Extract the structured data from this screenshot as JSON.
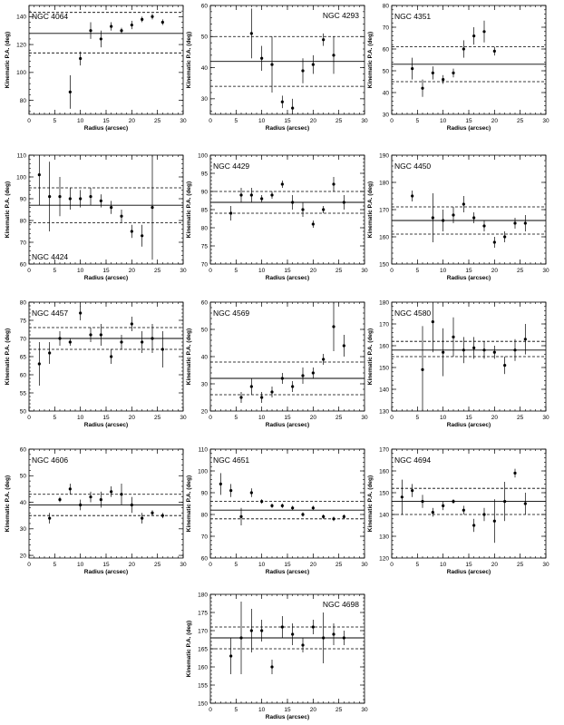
{
  "chart_data": [
    {
      "type": "scatter",
      "galaxy": "NGC 4064",
      "title_pos": "top-left",
      "title": "NGC 4064",
      "xlabel": "Radius (arcsec)",
      "ylabel": "Kinematic P.A. (deg)",
      "xlim": [
        0,
        30
      ],
      "ylim": [
        70,
        148
      ],
      "xticks": [
        0,
        5,
        10,
        15,
        20,
        25,
        30
      ],
      "yticks": [
        80,
        100,
        120,
        140
      ],
      "hline": 128,
      "band": [
        114,
        143
      ],
      "points": [
        {
          "x": 8,
          "y": 86,
          "err": 12
        },
        {
          "x": 10,
          "y": 110,
          "err": 5
        },
        {
          "x": 12,
          "y": 130,
          "err": 6
        },
        {
          "x": 14,
          "y": 124,
          "err": 6
        },
        {
          "x": 16,
          "y": 133,
          "err": 3
        },
        {
          "x": 18,
          "y": 130,
          "err": 2
        },
        {
          "x": 20,
          "y": 134,
          "err": 3
        },
        {
          "x": 22,
          "y": 138,
          "err": 2
        },
        {
          "x": 24,
          "y": 140,
          "err": 2
        },
        {
          "x": 26,
          "y": 136,
          "err": 2
        }
      ]
    },
    {
      "type": "scatter",
      "galaxy": "NGC 4293",
      "title_pos": "top-right",
      "title": "NGC 4293",
      "xlabel": "Radius (arcsec)",
      "ylabel": "Kinematic P.A. (deg)",
      "xlim": [
        0,
        30
      ],
      "ylim": [
        25,
        60
      ],
      "xticks": [
        0,
        5,
        10,
        15,
        20,
        25,
        30
      ],
      "yticks": [
        30,
        40,
        50,
        60
      ],
      "hline": 42,
      "band": [
        34,
        50
      ],
      "points": [
        {
          "x": 8,
          "y": 51,
          "err": 8
        },
        {
          "x": 10,
          "y": 43,
          "err": 4
        },
        {
          "x": 12,
          "y": 41,
          "err": 9
        },
        {
          "x": 14,
          "y": 29,
          "err": 2
        },
        {
          "x": 16,
          "y": 27,
          "err": 3
        },
        {
          "x": 18,
          "y": 39,
          "err": 4
        },
        {
          "x": 20,
          "y": 41,
          "err": 3
        },
        {
          "x": 22,
          "y": 49,
          "err": 2
        },
        {
          "x": 24,
          "y": 44,
          "err": 6
        }
      ]
    },
    {
      "type": "scatter",
      "galaxy": "NGC 4351",
      "title_pos": "top-left",
      "title": "NGC 4351",
      "xlabel": "Radius (arcsec)",
      "ylabel": "Kinematic P.A. (deg)",
      "xlim": [
        0,
        30
      ],
      "ylim": [
        30,
        80
      ],
      "xticks": [
        0,
        5,
        10,
        15,
        20,
        25,
        30
      ],
      "yticks": [
        30,
        40,
        50,
        60,
        70,
        80
      ],
      "hline": 53,
      "band": [
        45,
        61
      ],
      "points": [
        {
          "x": 4,
          "y": 51,
          "err": 5
        },
        {
          "x": 6,
          "y": 42,
          "err": 4
        },
        {
          "x": 8,
          "y": 49,
          "err": 3
        },
        {
          "x": 10,
          "y": 46,
          "err": 2
        },
        {
          "x": 12,
          "y": 49,
          "err": 2
        },
        {
          "x": 14,
          "y": 60,
          "err": 4
        },
        {
          "x": 16,
          "y": 66,
          "err": 4
        },
        {
          "x": 18,
          "y": 68,
          "err": 5
        },
        {
          "x": 20,
          "y": 59,
          "err": 2
        }
      ]
    },
    {
      "type": "scatter",
      "galaxy": "NGC 4424",
      "title_pos": "bottom-left",
      "title": "NGC 4424",
      "xlabel": "Radius (arcsec)",
      "ylabel": "Kinematic P.A. (deg)",
      "xlim": [
        0,
        30
      ],
      "ylim": [
        60,
        110
      ],
      "xticks": [
        0,
        5,
        10,
        15,
        20,
        25,
        30
      ],
      "yticks": [
        60,
        70,
        80,
        90,
        100,
        110
      ],
      "hline": 87,
      "band": [
        79,
        95
      ],
      "points": [
        {
          "x": 2,
          "y": 101,
          "err": 14
        },
        {
          "x": 4,
          "y": 91,
          "err": 16
        },
        {
          "x": 6,
          "y": 91,
          "err": 9
        },
        {
          "x": 8,
          "y": 90,
          "err": 5
        },
        {
          "x": 10,
          "y": 90,
          "err": 4
        },
        {
          "x": 12,
          "y": 91,
          "err": 4
        },
        {
          "x": 14,
          "y": 89,
          "err": 3
        },
        {
          "x": 16,
          "y": 86,
          "err": 3
        },
        {
          "x": 18,
          "y": 82,
          "err": 3
        },
        {
          "x": 20,
          "y": 75,
          "err": 3
        },
        {
          "x": 22,
          "y": 73,
          "err": 5
        },
        {
          "x": 24,
          "y": 86,
          "err": 24
        }
      ]
    },
    {
      "type": "scatter",
      "galaxy": "NGC 4429",
      "title_pos": "top-left",
      "title": "NGC 4429",
      "xlabel": "Radius (arcsec)",
      "ylabel": "Kinematic P.A. (deg)",
      "xlim": [
        0,
        30
      ],
      "ylim": [
        70,
        100
      ],
      "xticks": [
        0,
        5,
        10,
        15,
        20,
        25,
        30
      ],
      "yticks": [
        70,
        75,
        80,
        85,
        90,
        95,
        100
      ],
      "hline": 87,
      "band": [
        84,
        90
      ],
      "points": [
        {
          "x": 4,
          "y": 84,
          "err": 2
        },
        {
          "x": 6,
          "y": 89,
          "err": 2
        },
        {
          "x": 8,
          "y": 89,
          "err": 2
        },
        {
          "x": 10,
          "y": 88,
          "err": 1
        },
        {
          "x": 12,
          "y": 89,
          "err": 1
        },
        {
          "x": 14,
          "y": 92,
          "err": 1
        },
        {
          "x": 16,
          "y": 87,
          "err": 2
        },
        {
          "x": 18,
          "y": 85,
          "err": 2
        },
        {
          "x": 20,
          "y": 81,
          "err": 1
        },
        {
          "x": 22,
          "y": 85,
          "err": 1
        },
        {
          "x": 24,
          "y": 92,
          "err": 2
        },
        {
          "x": 26,
          "y": 87,
          "err": 2
        }
      ]
    },
    {
      "type": "scatter",
      "galaxy": "NGC 4450",
      "title_pos": "top-left",
      "title": "NGC 4450",
      "xlabel": "Radius (arcsec)",
      "ylabel": "Kinematic P.A. (deg)",
      "xlim": [
        0,
        30
      ],
      "ylim": [
        150,
        190
      ],
      "xticks": [
        0,
        5,
        10,
        15,
        20,
        25,
        30
      ],
      "yticks": [
        150,
        160,
        170,
        180,
        190
      ],
      "hline": 166,
      "band": [
        161,
        171
      ],
      "points": [
        {
          "x": 4,
          "y": 175,
          "err": 2
        },
        {
          "x": 8,
          "y": 167,
          "err": 9
        },
        {
          "x": 10,
          "y": 166,
          "err": 4
        },
        {
          "x": 12,
          "y": 168,
          "err": 3
        },
        {
          "x": 14,
          "y": 172,
          "err": 3
        },
        {
          "x": 16,
          "y": 167,
          "err": 2
        },
        {
          "x": 18,
          "y": 164,
          "err": 2
        },
        {
          "x": 20,
          "y": 158,
          "err": 2
        },
        {
          "x": 22,
          "y": 160,
          "err": 2
        },
        {
          "x": 24,
          "y": 165,
          "err": 2
        },
        {
          "x": 26,
          "y": 165,
          "err": 3
        }
      ]
    },
    {
      "type": "scatter",
      "galaxy": "NGC 4457",
      "title_pos": "top-left",
      "title": "NGC 4457",
      "xlabel": "Radius (arcsec)",
      "ylabel": "Kinematic P.A. (deg)",
      "xlim": [
        0,
        30
      ],
      "ylim": [
        50,
        80
      ],
      "xticks": [
        0,
        5,
        10,
        15,
        20,
        25,
        30
      ],
      "yticks": [
        50,
        55,
        60,
        65,
        70,
        75,
        80
      ],
      "hline": 70,
      "band": [
        67,
        73
      ],
      "points": [
        {
          "x": 2,
          "y": 63,
          "err": 6
        },
        {
          "x": 4,
          "y": 66,
          "err": 3
        },
        {
          "x": 6,
          "y": 70,
          "err": 2
        },
        {
          "x": 8,
          "y": 69,
          "err": 1
        },
        {
          "x": 10,
          "y": 77,
          "err": 2
        },
        {
          "x": 12,
          "y": 71,
          "err": 2
        },
        {
          "x": 14,
          "y": 71,
          "err": 3
        },
        {
          "x": 16,
          "y": 65,
          "err": 2
        },
        {
          "x": 18,
          "y": 69,
          "err": 2
        },
        {
          "x": 20,
          "y": 74,
          "err": 2
        },
        {
          "x": 22,
          "y": 69,
          "err": 3
        },
        {
          "x": 24,
          "y": 70,
          "err": 4
        },
        {
          "x": 26,
          "y": 67,
          "err": 5
        }
      ]
    },
    {
      "type": "scatter",
      "galaxy": "NGC 4569",
      "title_pos": "top-left",
      "title": "NGC 4569",
      "xlabel": "Radius (arcsec)",
      "ylabel": "Kinematic P.A. (deg)",
      "xlim": [
        0,
        30
      ],
      "ylim": [
        20,
        60
      ],
      "xticks": [
        0,
        5,
        10,
        15,
        20,
        25,
        30
      ],
      "yticks": [
        20,
        30,
        40,
        50,
        60
      ],
      "hline": 32,
      "band": [
        26,
        38
      ],
      "points": [
        {
          "x": 6,
          "y": 25,
          "err": 2
        },
        {
          "x": 8,
          "y": 29,
          "err": 3
        },
        {
          "x": 10,
          "y": 25,
          "err": 2
        },
        {
          "x": 12,
          "y": 27,
          "err": 2
        },
        {
          "x": 14,
          "y": 32,
          "err": 2
        },
        {
          "x": 16,
          "y": 29,
          "err": 2
        },
        {
          "x": 18,
          "y": 33,
          "err": 3
        },
        {
          "x": 20,
          "y": 34,
          "err": 2
        },
        {
          "x": 22,
          "y": 39,
          "err": 2
        },
        {
          "x": 24,
          "y": 51,
          "err": 9
        },
        {
          "x": 26,
          "y": 44,
          "err": 4
        }
      ]
    },
    {
      "type": "scatter",
      "galaxy": "NGC 4580",
      "title_pos": "top-left",
      "title": "NGC 4580",
      "xlabel": "Radius (arcsec)",
      "ylabel": "Kinematic P.A. (deg)",
      "xlim": [
        0,
        30
      ],
      "ylim": [
        130,
        180
      ],
      "xticks": [
        0,
        5,
        10,
        15,
        20,
        25,
        30
      ],
      "yticks": [
        130,
        140,
        150,
        160,
        170,
        180
      ],
      "hline": 158,
      "band": [
        155,
        162
      ],
      "points": [
        {
          "x": 6,
          "y": 149,
          "err": 20
        },
        {
          "x": 8,
          "y": 171,
          "err": 14
        },
        {
          "x": 10,
          "y": 157,
          "err": 11
        },
        {
          "x": 12,
          "y": 164,
          "err": 9
        },
        {
          "x": 14,
          "y": 158,
          "err": 6
        },
        {
          "x": 16,
          "y": 159,
          "err": 5
        },
        {
          "x": 18,
          "y": 158,
          "err": 4
        },
        {
          "x": 20,
          "y": 157,
          "err": 3
        },
        {
          "x": 22,
          "y": 151,
          "err": 4
        },
        {
          "x": 24,
          "y": 158,
          "err": 5
        },
        {
          "x": 26,
          "y": 163,
          "err": 7
        }
      ]
    },
    {
      "type": "scatter",
      "galaxy": "NGC 4606",
      "title_pos": "top-left",
      "title": "NGC 4606",
      "xlabel": "Radius (arcsec)",
      "ylabel": "Kinematic P.A. (deg)",
      "xlim": [
        0,
        30
      ],
      "ylim": [
        19,
        60
      ],
      "xticks": [
        0,
        5,
        10,
        15,
        20,
        25,
        30
      ],
      "yticks": [
        20,
        30,
        40,
        50,
        60
      ],
      "hline": 39,
      "band": [
        35,
        43
      ],
      "points": [
        {
          "x": 4,
          "y": 34,
          "err": 2
        },
        {
          "x": 6,
          "y": 41,
          "err": 1
        },
        {
          "x": 8,
          "y": 45,
          "err": 2
        },
        {
          "x": 10,
          "y": 39,
          "err": 2
        },
        {
          "x": 12,
          "y": 42,
          "err": 2
        },
        {
          "x": 14,
          "y": 41,
          "err": 3
        },
        {
          "x": 16,
          "y": 44,
          "err": 2
        },
        {
          "x": 18,
          "y": 43,
          "err": 4
        },
        {
          "x": 20,
          "y": 39,
          "err": 3
        },
        {
          "x": 22,
          "y": 34,
          "err": 2
        },
        {
          "x": 24,
          "y": 36,
          "err": 1
        },
        {
          "x": 26,
          "y": 35,
          "err": 1
        }
      ]
    },
    {
      "type": "scatter",
      "galaxy": "NGC 4651",
      "title_pos": "top-left",
      "title": "NGC 4651",
      "xlabel": "Radius (arcsec)",
      "ylabel": "Kinematic P.A. (deg)",
      "xlim": [
        0,
        30
      ],
      "ylim": [
        60,
        110
      ],
      "xticks": [
        0,
        5,
        10,
        15,
        20,
        25,
        30
      ],
      "yticks": [
        60,
        70,
        80,
        90,
        100,
        110
      ],
      "hline": 82,
      "band": [
        78,
        86
      ],
      "points": [
        {
          "x": 2,
          "y": 94,
          "err": 5
        },
        {
          "x": 4,
          "y": 91,
          "err": 3
        },
        {
          "x": 6,
          "y": 79,
          "err": 4
        },
        {
          "x": 8,
          "y": 90,
          "err": 2
        },
        {
          "x": 10,
          "y": 86,
          "err": 1
        },
        {
          "x": 12,
          "y": 84,
          "err": 1
        },
        {
          "x": 14,
          "y": 84,
          "err": 1
        },
        {
          "x": 16,
          "y": 83,
          "err": 1
        },
        {
          "x": 18,
          "y": 80,
          "err": 1
        },
        {
          "x": 20,
          "y": 83,
          "err": 1
        },
        {
          "x": 22,
          "y": 79,
          "err": 1
        },
        {
          "x": 24,
          "y": 78,
          "err": 1
        },
        {
          "x": 26,
          "y": 79,
          "err": 1
        }
      ]
    },
    {
      "type": "scatter",
      "galaxy": "NGC 4694",
      "title_pos": "top-left",
      "title": "NGC 4694",
      "xlabel": "Radius (arcsec)",
      "ylabel": "Kinematic P.A. (deg)",
      "xlim": [
        0,
        30
      ],
      "ylim": [
        120,
        170
      ],
      "xticks": [
        0,
        5,
        10,
        15,
        20,
        25,
        30
      ],
      "yticks": [
        120,
        130,
        140,
        150,
        160,
        170
      ],
      "hline": 146,
      "band": [
        140,
        152
      ],
      "points": [
        {
          "x": 2,
          "y": 148,
          "err": 8
        },
        {
          "x": 4,
          "y": 151,
          "err": 3
        },
        {
          "x": 6,
          "y": 146,
          "err": 3
        },
        {
          "x": 8,
          "y": 141,
          "err": 2
        },
        {
          "x": 10,
          "y": 144,
          "err": 2
        },
        {
          "x": 12,
          "y": 146,
          "err": 1
        },
        {
          "x": 14,
          "y": 142,
          "err": 2
        },
        {
          "x": 16,
          "y": 135,
          "err": 3
        },
        {
          "x": 18,
          "y": 140,
          "err": 3
        },
        {
          "x": 20,
          "y": 137,
          "err": 10
        },
        {
          "x": 22,
          "y": 146,
          "err": 9
        },
        {
          "x": 24,
          "y": 159,
          "err": 2
        },
        {
          "x": 26,
          "y": 145,
          "err": 5
        }
      ]
    },
    {
      "type": "scatter",
      "galaxy": "NGC 4698",
      "title_pos": "top-right",
      "title": "NGC 4698",
      "xlabel": "Radius (arcsec)",
      "ylabel": "Kinematic P.A. (deg)",
      "xlim": [
        0,
        30
      ],
      "ylim": [
        150,
        180
      ],
      "xticks": [
        0,
        5,
        10,
        15,
        20,
        25,
        30
      ],
      "yticks": [
        150,
        155,
        160,
        165,
        170,
        175,
        180
      ],
      "hline": 168,
      "band": [
        165,
        171
      ],
      "points": [
        {
          "x": 4,
          "y": 163,
          "err": 5
        },
        {
          "x": 6,
          "y": 168,
          "err": 10
        },
        {
          "x": 8,
          "y": 170,
          "err": 6
        },
        {
          "x": 10,
          "y": 170,
          "err": 3
        },
        {
          "x": 12,
          "y": 160,
          "err": 2
        },
        {
          "x": 14,
          "y": 171,
          "err": 3
        },
        {
          "x": 16,
          "y": 169,
          "err": 3
        },
        {
          "x": 18,
          "y": 166,
          "err": 2
        },
        {
          "x": 20,
          "y": 171,
          "err": 2
        },
        {
          "x": 22,
          "y": 168,
          "err": 7
        },
        {
          "x": 24,
          "y": 169,
          "err": 3
        },
        {
          "x": 26,
          "y": 168,
          "err": 2
        }
      ]
    }
  ]
}
